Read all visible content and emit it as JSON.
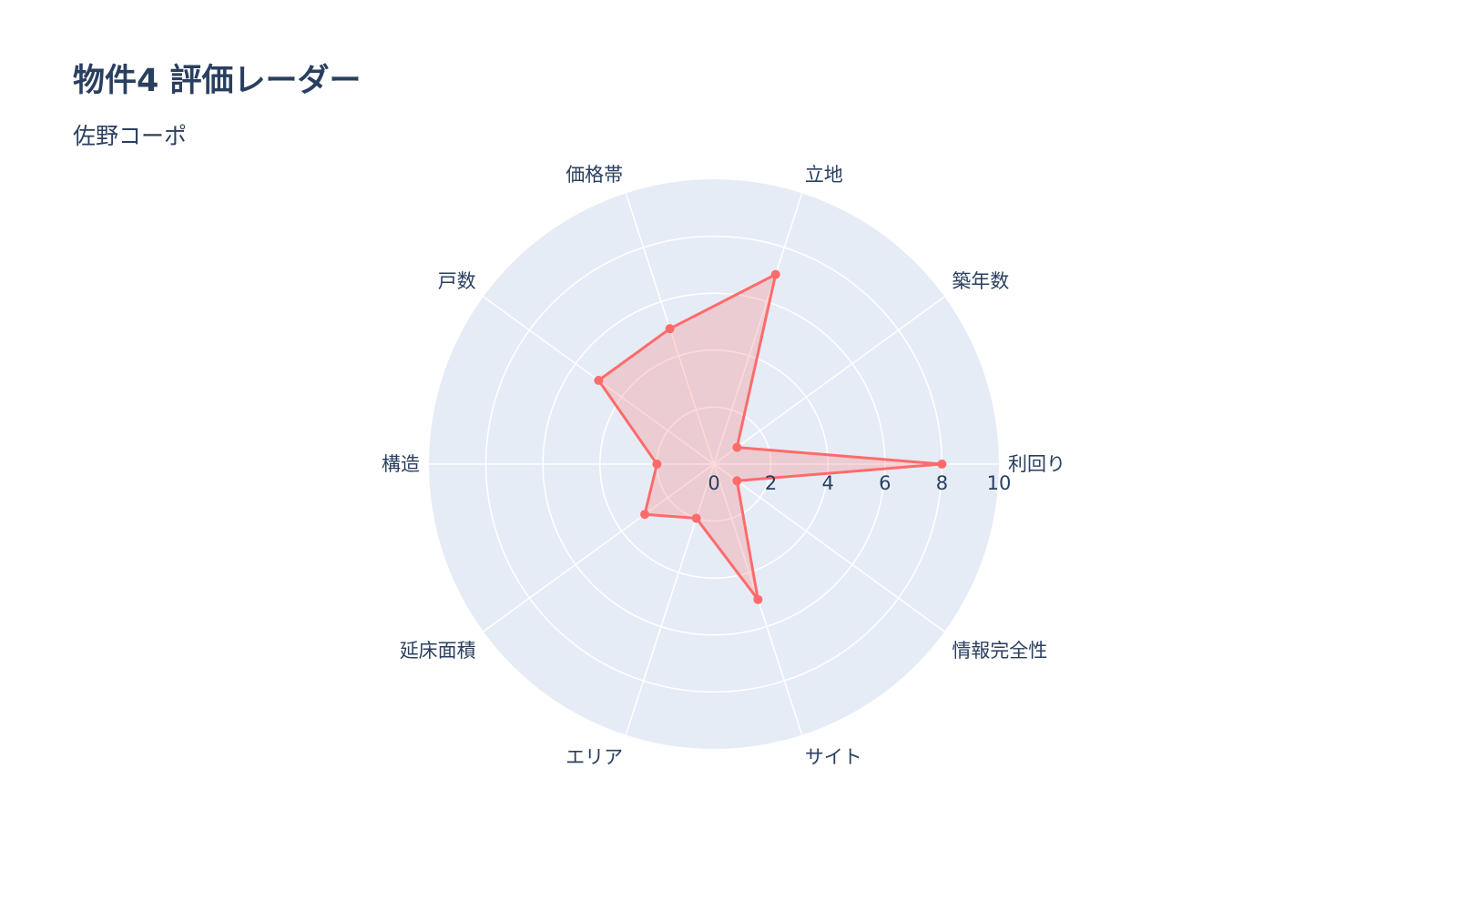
{
  "chart_data": {
    "type": "radar",
    "title": "物件4 評価レーダー",
    "subtitle": "佐野コーポ",
    "categories": [
      "利回り",
      "築年数",
      "立地",
      "価格帯",
      "戸数",
      "構造",
      "延床面積",
      "エリア",
      "サイト",
      "情報完全性"
    ],
    "values": [
      8,
      1,
      7,
      5,
      5,
      2,
      3,
      2,
      5,
      1
    ],
    "radial_range": [
      0,
      10
    ],
    "radial_ticks": [
      "0",
      "2",
      "4",
      "6",
      "8",
      "10"
    ],
    "grid": true,
    "colors": {
      "line": "#ff6b6b",
      "fill": "rgba(255,107,107,0.25)",
      "polar_bg": "#e5ecf6",
      "text": "#2a3f5f"
    }
  }
}
